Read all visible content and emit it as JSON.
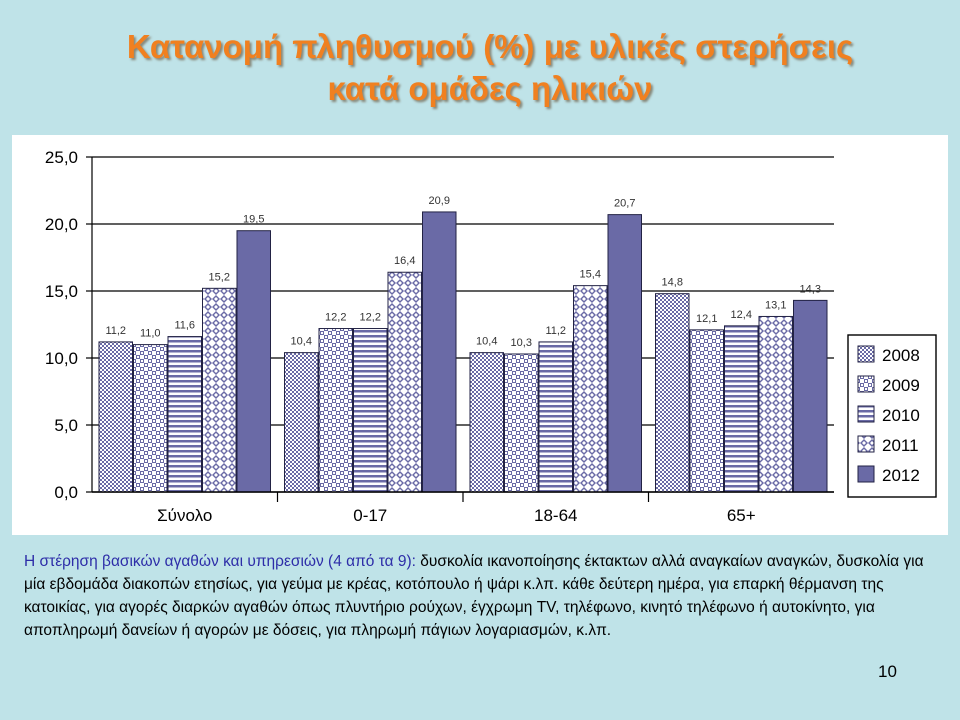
{
  "slide": {
    "title_line1": "Κατανομή πληθυσμού (%) με υλικές στερήσεις",
    "title_line2": "κατά ομάδες ηλικιών",
    "description_lead": "Η στέρηση βασικών αγαθών και υπηρεσιών (4 από τα 9):",
    "description_body": " δυσκολία ικανοποίησης έκτακτων αλλά αναγκαίων αναγκών, δυσκολία για μία εβδομάδα διακοπών ετησίως, για γεύμα με κρέας, κοτόπουλο ή ψάρι κ.λπ. κάθε δεύτερη ημέρα, για επαρκή θέρμανση της κατοικίας, για αγορές διαρκών αγαθών όπως πλυντήριο ρούχων, έγχρωμη TV, τηλέφωνο, κινητό τηλέφωνο ή αυτοκίνητο, για αποπληρωμή δανείων ή αγορών με δόσεις, για πληρωμή πάγιων λογαριασμών, κ.λπ.",
    "page_number": "10"
  },
  "chart_data": {
    "type": "bar",
    "categories": [
      "Σύνολο",
      "0-17",
      "18-64",
      "65+"
    ],
    "series": [
      {
        "name": "2008",
        "values": [
          11.2,
          10.4,
          10.4,
          14.8
        ],
        "labels": [
          "11,2",
          "10,4",
          "10,4",
          "14,8"
        ],
        "pattern": "dots"
      },
      {
        "name": "2009",
        "values": [
          11.0,
          12.2,
          10.3,
          12.1
        ],
        "labels": [
          "11,0",
          "12,2",
          "10,3",
          "12,1"
        ],
        "pattern": "checker"
      },
      {
        "name": "2010",
        "values": [
          11.6,
          12.2,
          11.2,
          12.4
        ],
        "labels": [
          "11,6",
          "12,2",
          "11,2",
          "12,4"
        ],
        "pattern": "hstripes"
      },
      {
        "name": "2011",
        "values": [
          15.2,
          16.4,
          15.4,
          13.1
        ],
        "labels": [
          "15,2",
          "16,4",
          "15,4",
          "13,1"
        ],
        "pattern": "diamonds"
      },
      {
        "name": "2012",
        "values": [
          19.5,
          20.9,
          20.7,
          14.3
        ],
        "labels": [
          "19,5",
          "20,9",
          "20,7",
          "14,3"
        ],
        "pattern": "solid"
      }
    ],
    "ylim": [
      0,
      25
    ],
    "yticks": [
      "0,0",
      "5,0",
      "10,0",
      "15,0",
      "20,0",
      "25,0"
    ],
    "grid": true,
    "legend_position": "right",
    "colors": {
      "bar_fill": "#6a6aa6",
      "bar_pattern_bg": "#ffffff",
      "bar_edge": "#222244",
      "grid": "#000000"
    }
  }
}
